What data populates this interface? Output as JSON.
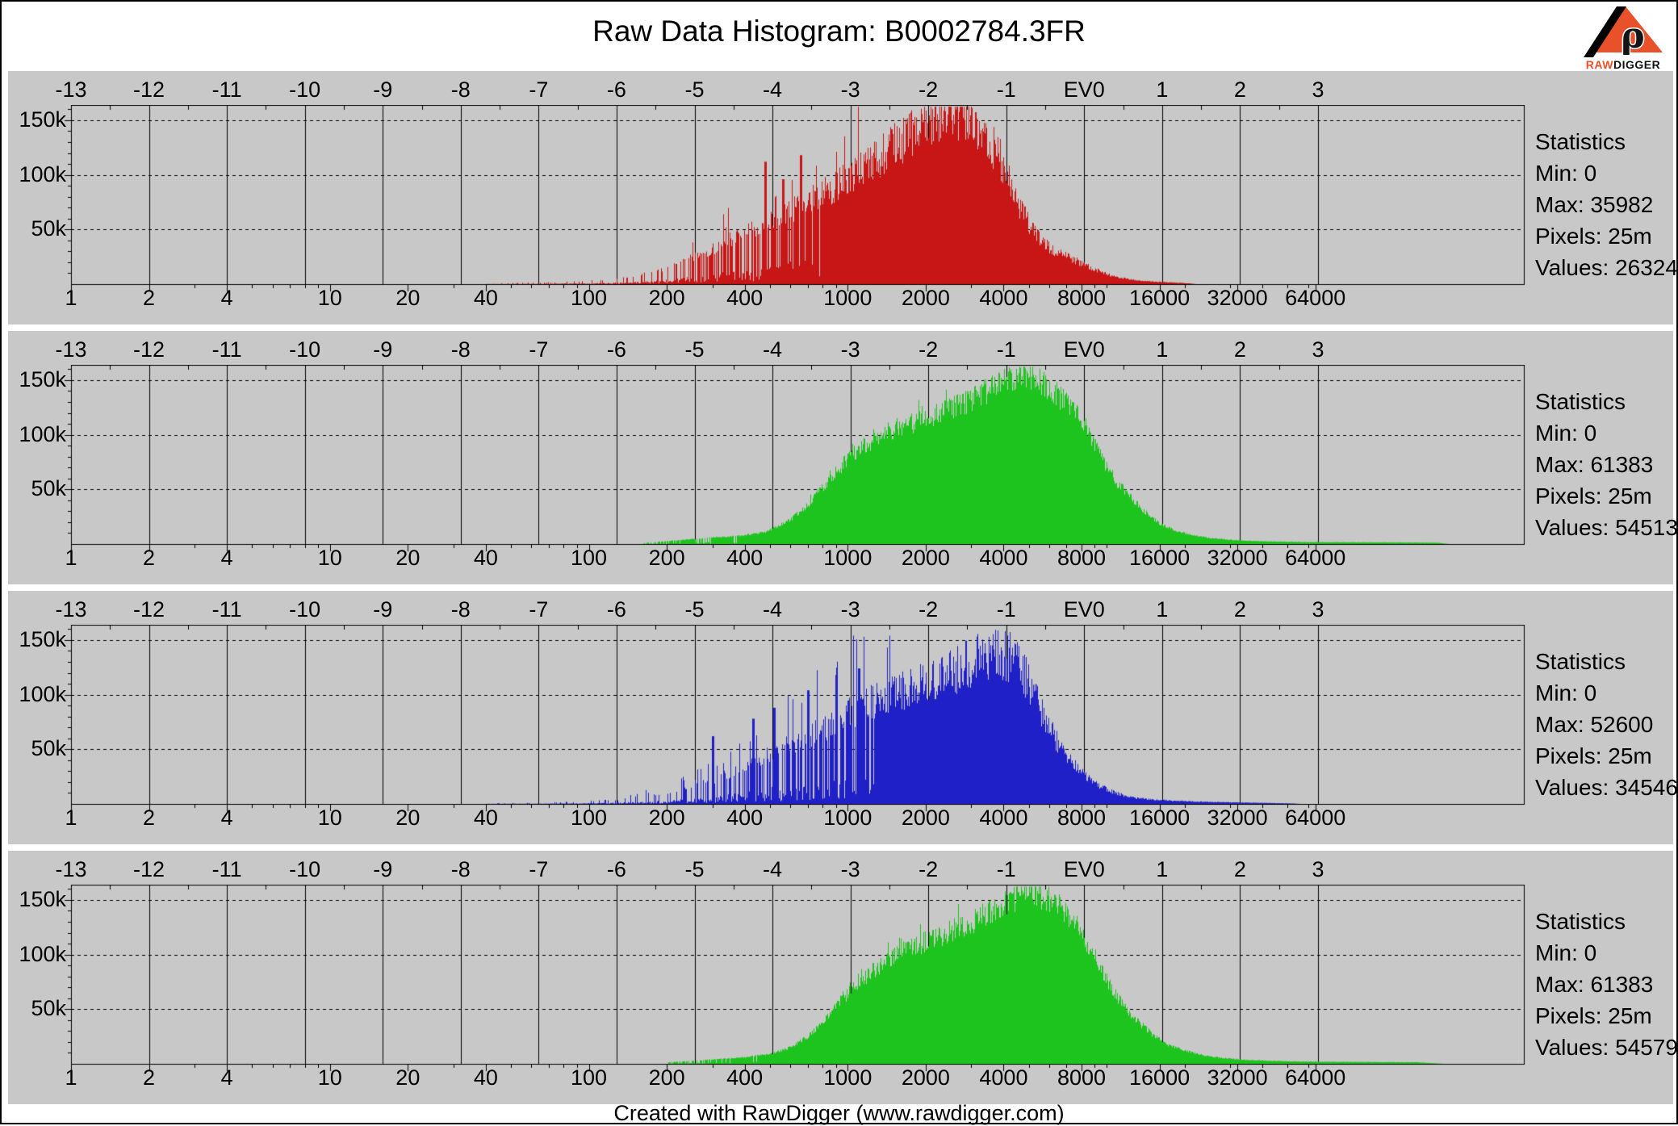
{
  "page": {
    "title": "Raw Data Histogram: B0002784.3FR",
    "footer": "Created with RawDigger (www.rawdigger.com)",
    "logo": {
      "brand_raw": "RAW",
      "brand_digger": "DIGGER",
      "rho": "ρ"
    }
  },
  "colors": {
    "panel_background": "#c8c8c8",
    "red_channel": "#c81616",
    "green_channel": "#1ec41e",
    "blue_channel": "#2020c8",
    "logo_orange": "#e8512a"
  },
  "axes": {
    "top": [
      {
        "ev": -13,
        "label": "-13"
      },
      {
        "ev": -12,
        "label": "-12"
      },
      {
        "ev": -11,
        "label": "-11"
      },
      {
        "ev": -10,
        "label": "-10"
      },
      {
        "ev": -9,
        "label": "-9"
      },
      {
        "ev": -8,
        "label": "-8"
      },
      {
        "ev": -7,
        "label": "-7"
      },
      {
        "ev": -6,
        "label": "-6"
      },
      {
        "ev": -5,
        "label": "-5"
      },
      {
        "ev": -4,
        "label": "-4"
      },
      {
        "ev": -3,
        "label": "-3"
      },
      {
        "ev": -2,
        "label": "-2"
      },
      {
        "ev": -1,
        "label": "-1"
      },
      {
        "ev": 0,
        "label": "EV0"
      },
      {
        "ev": 1,
        "label": "1"
      },
      {
        "ev": 2,
        "label": "2"
      },
      {
        "ev": 3,
        "label": "3"
      }
    ],
    "bottom": [
      {
        "value": 1,
        "label": "1"
      },
      {
        "value": 2,
        "label": "2"
      },
      {
        "value": 4,
        "label": "4"
      },
      {
        "value": 10,
        "label": "10"
      },
      {
        "value": 20,
        "label": "20"
      },
      {
        "value": 40,
        "label": "40"
      },
      {
        "value": 100,
        "label": "100"
      },
      {
        "value": 200,
        "label": "200"
      },
      {
        "value": 400,
        "label": "400"
      },
      {
        "value": 1000,
        "label": "1000"
      },
      {
        "value": 2000,
        "label": "2000"
      },
      {
        "value": 4000,
        "label": "4000"
      },
      {
        "value": 8000,
        "label": "8000"
      },
      {
        "value": 16000,
        "label": "16000"
      },
      {
        "value": 32000,
        "label": "32000"
      },
      {
        "value": 64000,
        "label": "64000"
      }
    ],
    "y": [
      {
        "count": 150000,
        "label": "150k"
      },
      {
        "count": 100000,
        "label": "100k"
      },
      {
        "count": 50000,
        "label": "50k"
      }
    ],
    "x_scale": "log2",
    "x_range": [
      1,
      400000
    ],
    "y_range": [
      0,
      164000
    ],
    "grid": "on"
  },
  "chart_data": [
    {
      "type": "histogram",
      "channel": "red",
      "color": "#c81616",
      "stats_lines": [
        "Statistics",
        "Min: 0",
        "Max: 35982",
        "Pixels: 25m",
        "Values: 26324"
      ],
      "stats": {
        "min": 0,
        "max": 35982,
        "pixels": "25m",
        "values": 26324
      },
      "envelope": [
        [
          40,
          500
        ],
        [
          70,
          1500
        ],
        [
          100,
          3000
        ],
        [
          140,
          6000
        ],
        [
          200,
          15000
        ],
        [
          280,
          28000
        ],
        [
          400,
          48000
        ],
        [
          550,
          62000
        ],
        [
          700,
          76000
        ],
        [
          900,
          90000
        ],
        [
          1100,
          103000
        ],
        [
          1400,
          120000
        ],
        [
          1800,
          140000
        ],
        [
          2200,
          155000
        ],
        [
          2600,
          158000
        ],
        [
          3000,
          150000
        ],
        [
          3400,
          136000
        ],
        [
          3800,
          118000
        ],
        [
          4200,
          96000
        ],
        [
          4700,
          66000
        ],
        [
          5200,
          48000
        ],
        [
          6000,
          33000
        ],
        [
          7000,
          25000
        ],
        [
          8000,
          19000
        ],
        [
          9500,
          11000
        ],
        [
          11000,
          6000
        ],
        [
          13000,
          3500
        ],
        [
          16000,
          2000
        ],
        [
          19000,
          1200
        ],
        [
          21000,
          600
        ],
        [
          22000,
          0
        ]
      ],
      "texture": {
        "seed": 11,
        "jitter": 0.34,
        "comb_below": 1000,
        "comb_strength": 0.3,
        "spike_prob": 0.05,
        "spike_gain": 1.8,
        "spike_range": [
          250,
          1200
        ],
        "mega_spikes": [
          [
            480,
            112000
          ],
          [
            560,
            96000
          ],
          [
            660,
            118000
          ]
        ]
      }
    },
    {
      "type": "histogram",
      "channel": "green",
      "color": "#1ec41e",
      "stats_lines": [
        "Statistics",
        "Min: 0",
        "Max: 61383",
        "Pixels: 25m",
        "Values: 54513"
      ],
      "stats": {
        "min": 0,
        "max": 61383,
        "pixels": "25m",
        "values": 54513
      },
      "envelope": [
        [
          160,
          800
        ],
        [
          220,
          3500
        ],
        [
          300,
          6000
        ],
        [
          380,
          7500
        ],
        [
          480,
          11000
        ],
        [
          600,
          22000
        ],
        [
          700,
          36000
        ],
        [
          800,
          52000
        ],
        [
          900,
          66000
        ],
        [
          1000,
          78000
        ],
        [
          1150,
          90000
        ],
        [
          1300,
          97000
        ],
        [
          1500,
          105000
        ],
        [
          1750,
          110000
        ],
        [
          2000,
          116000
        ],
        [
          2300,
          121000
        ],
        [
          2700,
          127000
        ],
        [
          3100,
          134000
        ],
        [
          3600,
          143000
        ],
        [
          4100,
          150000
        ],
        [
          4600,
          156000
        ],
        [
          5100,
          154000
        ],
        [
          5700,
          148000
        ],
        [
          6400,
          138000
        ],
        [
          7200,
          126000
        ],
        [
          8000,
          112000
        ],
        [
          9000,
          92000
        ],
        [
          10000,
          70000
        ],
        [
          11000,
          55000
        ],
        [
          12500,
          42000
        ],
        [
          14000,
          30000
        ],
        [
          16000,
          19000
        ],
        [
          18000,
          13000
        ],
        [
          21000,
          8500
        ],
        [
          25000,
          5500
        ],
        [
          30000,
          3800
        ],
        [
          36000,
          2800
        ],
        [
          45000,
          2200
        ],
        [
          60000,
          1800
        ],
        [
          90000,
          1600
        ],
        [
          140000,
          1400
        ],
        [
          190000,
          1200
        ],
        [
          210000,
          0
        ]
      ],
      "texture": {
        "seed": 22,
        "jitter": 0.18,
        "comb_below": 520,
        "comb_strength": 0.22,
        "spike_prob": 0.05,
        "spike_gain": 1.18,
        "spike_range": [
          700,
          2600
        ],
        "mega_spikes": []
      }
    },
    {
      "type": "histogram",
      "channel": "blue",
      "color": "#2020c8",
      "stats_lines": [
        "Statistics",
        "Min: 0",
        "Max: 52600",
        "Pixels: 25m",
        "Values: 34546"
      ],
      "stats": {
        "min": 0,
        "max": 52600,
        "pixels": "25m",
        "values": 34546
      },
      "envelope": [
        [
          40,
          400
        ],
        [
          60,
          1000
        ],
        [
          90,
          2000
        ],
        [
          130,
          4000
        ],
        [
          180,
          8000
        ],
        [
          250,
          15000
        ],
        [
          350,
          28000
        ],
        [
          450,
          40000
        ],
        [
          550,
          50000
        ],
        [
          700,
          62000
        ],
        [
          850,
          72000
        ],
        [
          1000,
          82000
        ],
        [
          1200,
          92000
        ],
        [
          1500,
          100000
        ],
        [
          1800,
          107000
        ],
        [
          2200,
          115000
        ],
        [
          2600,
          122000
        ],
        [
          3000,
          130000
        ],
        [
          3400,
          136000
        ],
        [
          3800,
          138000
        ],
        [
          4200,
          134000
        ],
        [
          4600,
          124000
        ],
        [
          5000,
          110000
        ],
        [
          5500,
          90000
        ],
        [
          6000,
          70000
        ],
        [
          6600,
          52000
        ],
        [
          7300,
          38000
        ],
        [
          8000,
          28000
        ],
        [
          9000,
          19000
        ],
        [
          10000,
          13000
        ],
        [
          11500,
          8000
        ],
        [
          13000,
          5500
        ],
        [
          15000,
          4000
        ],
        [
          18000,
          3000
        ],
        [
          22000,
          2200
        ],
        [
          28000,
          1600
        ],
        [
          36000,
          1100
        ],
        [
          46000,
          700
        ],
        [
          52000,
          400
        ],
        [
          56000,
          0
        ]
      ],
      "texture": {
        "seed": 33,
        "jitter": 0.36,
        "comb_below": 1600,
        "comb_strength": 0.3,
        "spike_prob": 0.1,
        "spike_gain": 1.9,
        "spike_range": [
          140,
          1500
        ],
        "mega_spikes": [
          [
            300,
            62000
          ],
          [
            430,
            78000
          ],
          [
            520,
            88000
          ],
          [
            700,
            104000
          ],
          [
            900,
            118000
          ],
          [
            1100,
            124000
          ]
        ]
      }
    },
    {
      "type": "histogram",
      "channel": "green2",
      "color": "#1ec41e",
      "stats_lines": [
        "Statistics",
        "Min: 0",
        "Max: 61383",
        "Pixels: 25m",
        "Values: 54579"
      ],
      "stats": {
        "min": 0,
        "max": 61383,
        "pixels": "25m",
        "values": 54579
      },
      "envelope": [
        [
          200,
          1200
        ],
        [
          300,
          4000
        ],
        [
          400,
          6000
        ],
        [
          500,
          9000
        ],
        [
          600,
          15000
        ],
        [
          700,
          25000
        ],
        [
          800,
          38000
        ],
        [
          900,
          52000
        ],
        [
          1000,
          64000
        ],
        [
          1200,
          82000
        ],
        [
          1400,
          94000
        ],
        [
          1700,
          104000
        ],
        [
          2000,
          112000
        ],
        [
          2400,
          120000
        ],
        [
          2800,
          127000
        ],
        [
          3300,
          135000
        ],
        [
          3800,
          144000
        ],
        [
          4400,
          152000
        ],
        [
          5000,
          158000
        ],
        [
          5600,
          155000
        ],
        [
          6300,
          147000
        ],
        [
          7100,
          135000
        ],
        [
          8000,
          118000
        ],
        [
          9000,
          98000
        ],
        [
          10000,
          76000
        ],
        [
          11500,
          54000
        ],
        [
          13000,
          40000
        ],
        [
          15000,
          27000
        ],
        [
          17000,
          18000
        ],
        [
          20000,
          12000
        ],
        [
          24000,
          7500
        ],
        [
          29000,
          5000
        ],
        [
          35000,
          3500
        ],
        [
          45000,
          2600
        ],
        [
          60000,
          2000
        ],
        [
          100000,
          1700
        ],
        [
          160000,
          1400
        ],
        [
          200000,
          0
        ]
      ],
      "texture": {
        "seed": 44,
        "jitter": 0.18,
        "comb_below": 560,
        "comb_strength": 0.22,
        "spike_prob": 0.05,
        "spike_gain": 1.18,
        "spike_range": [
          800,
          3000
        ],
        "mega_spikes": []
      }
    }
  ]
}
